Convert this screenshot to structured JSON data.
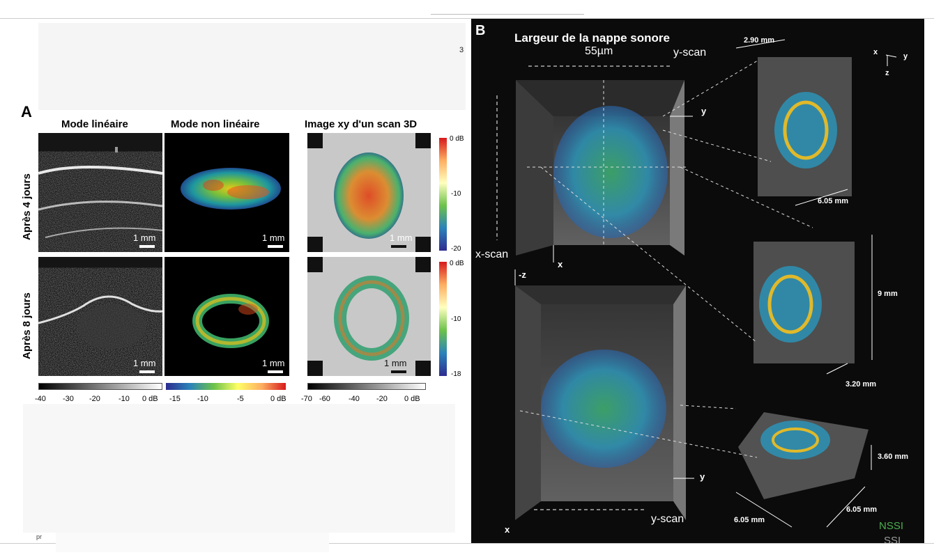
{
  "panel_a": {
    "label": "A",
    "columns": [
      "Mode linéaire",
      "Mode non linéaire",
      "Image xy d'un scan 3D"
    ],
    "rows": [
      "Après  4 jours",
      "Après 8 jours"
    ],
    "scale_label": "1 mm",
    "colorbars": {
      "linear": [
        "-40",
        "-30",
        "-20",
        "-10",
        "0 dB"
      ],
      "nonlinear": [
        "-15",
        "-10",
        "-5",
        "0 dB"
      ],
      "scan": [
        "-70",
        "-60",
        "-40",
        "-20",
        "0 dB"
      ]
    },
    "vertical_colorbars": {
      "top": [
        "0 dB",
        "-10",
        "-20"
      ],
      "bottom": [
        "0 dB",
        "-10",
        "-18"
      ]
    },
    "stray_text": "3",
    "footer_fragment": "pr"
  },
  "panel_b": {
    "label": "B",
    "title": "Largeur de la nappe sonore",
    "beam_width": "55µm",
    "y_scan": "y-scan",
    "x_scan": "x-scan",
    "axis_y": "y",
    "axis_x": "x",
    "axis_neg_z": "-z",
    "axis_z": "z",
    "dims": {
      "top_width": "2.90 mm",
      "top_depth": "6.05 mm",
      "mid_height": "9 mm",
      "mid_depth": "3.20 mm",
      "bot_height": "3.60 mm",
      "bot_depth_right": "6.05 mm",
      "bot_depth_left": "6.05 mm"
    },
    "legend": {
      "nssi": "NSSI",
      "ssi": "SSI"
    },
    "colors": {
      "nssi": "#4caf50",
      "ssi": "#9e9e9e"
    }
  }
}
